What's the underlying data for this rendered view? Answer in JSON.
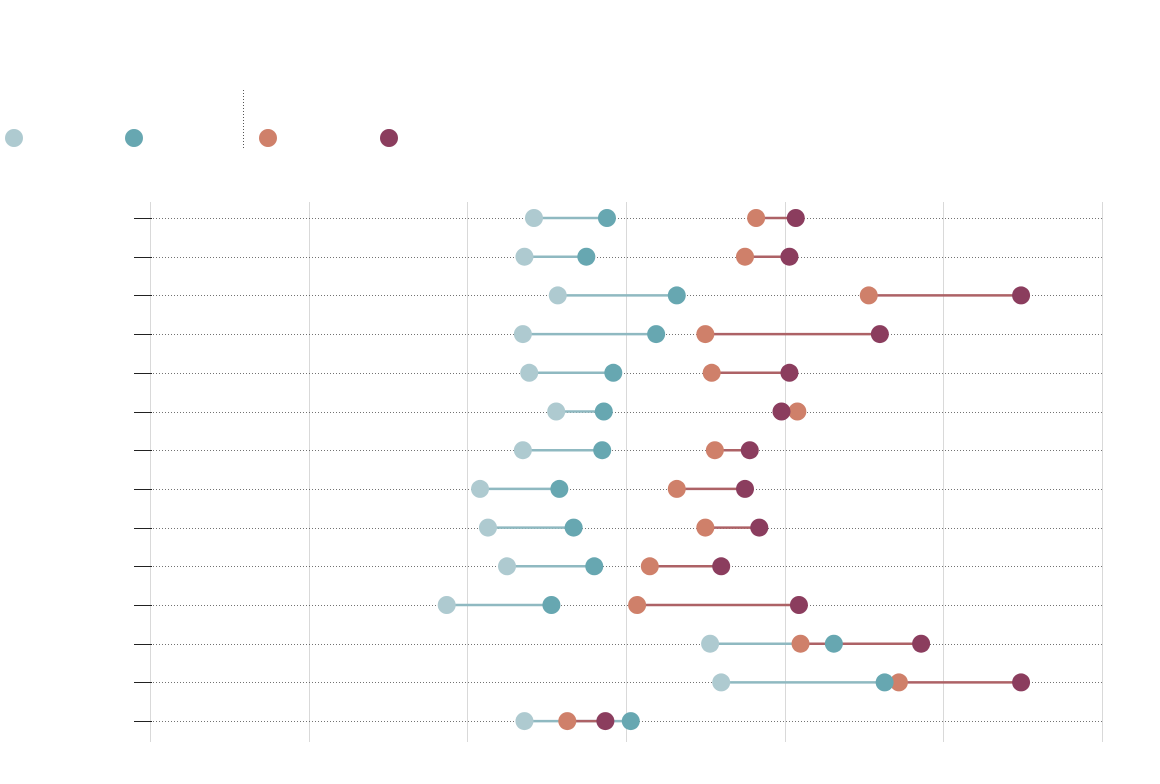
{
  "chart_data": {
    "type": "dumbbell",
    "title": "",
    "xlabel": "",
    "ylabel": "",
    "xlim": [
      0,
      6
    ],
    "grid": true,
    "legend": {
      "placement": "top-left",
      "groups": [
        {
          "series": [
            "s1",
            "s2"
          ]
        },
        {
          "series": [
            "s3",
            "s4"
          ]
        }
      ]
    },
    "series": [
      {
        "id": "s1",
        "name": "",
        "color": "#aecad0"
      },
      {
        "id": "s2",
        "name": "",
        "color": "#67a7b1"
      },
      {
        "id": "s3",
        "name": "",
        "color": "#cf806a"
      },
      {
        "id": "s4",
        "name": "",
        "color": "#8b3d5e"
      }
    ],
    "connectors": [
      {
        "from": "s1",
        "to": "s2",
        "color": "#8fb9c1"
      },
      {
        "from": "s3",
        "to": "s4",
        "color": "#ad6266"
      }
    ],
    "rows": [
      {
        "label": "",
        "s1": 2.42,
        "s2": 2.88,
        "s3": 3.82,
        "s4": 4.07
      },
      {
        "label": "",
        "s1": 2.36,
        "s2": 2.75,
        "s3": 3.75,
        "s4": 4.03
      },
      {
        "label": "",
        "s1": 2.57,
        "s2": 3.32,
        "s3": 4.53,
        "s4": 5.49
      },
      {
        "label": "",
        "s1": 2.35,
        "s2": 3.19,
        "s3": 3.5,
        "s4": 4.6
      },
      {
        "label": "",
        "s1": 2.39,
        "s2": 2.92,
        "s3": 3.54,
        "s4": 4.03
      },
      {
        "label": "",
        "s1": 2.56,
        "s2": 2.86,
        "s3": 4.08,
        "s4": 3.98
      },
      {
        "label": "",
        "s1": 2.35,
        "s2": 2.85,
        "s3": 3.56,
        "s4": 3.78
      },
      {
        "label": "",
        "s1": 2.08,
        "s2": 2.58,
        "s3": 3.32,
        "s4": 3.75
      },
      {
        "label": "",
        "s1": 2.13,
        "s2": 2.67,
        "s3": 3.5,
        "s4": 3.84
      },
      {
        "label": "",
        "s1": 2.25,
        "s2": 2.8,
        "s3": 3.15,
        "s4": 3.6
      },
      {
        "label": "",
        "s1": 1.87,
        "s2": 2.53,
        "s3": 3.07,
        "s4": 4.09
      },
      {
        "label": "",
        "s1": 3.53,
        "s2": 4.31,
        "s3": 4.1,
        "s4": 4.86
      },
      {
        "label": "",
        "s1": 3.6,
        "s2": 4.63,
        "s3": 4.72,
        "s4": 5.49
      },
      {
        "label": "",
        "s1": 2.36,
        "s2": 3.03,
        "s3": 2.63,
        "s4": 2.87
      }
    ]
  }
}
